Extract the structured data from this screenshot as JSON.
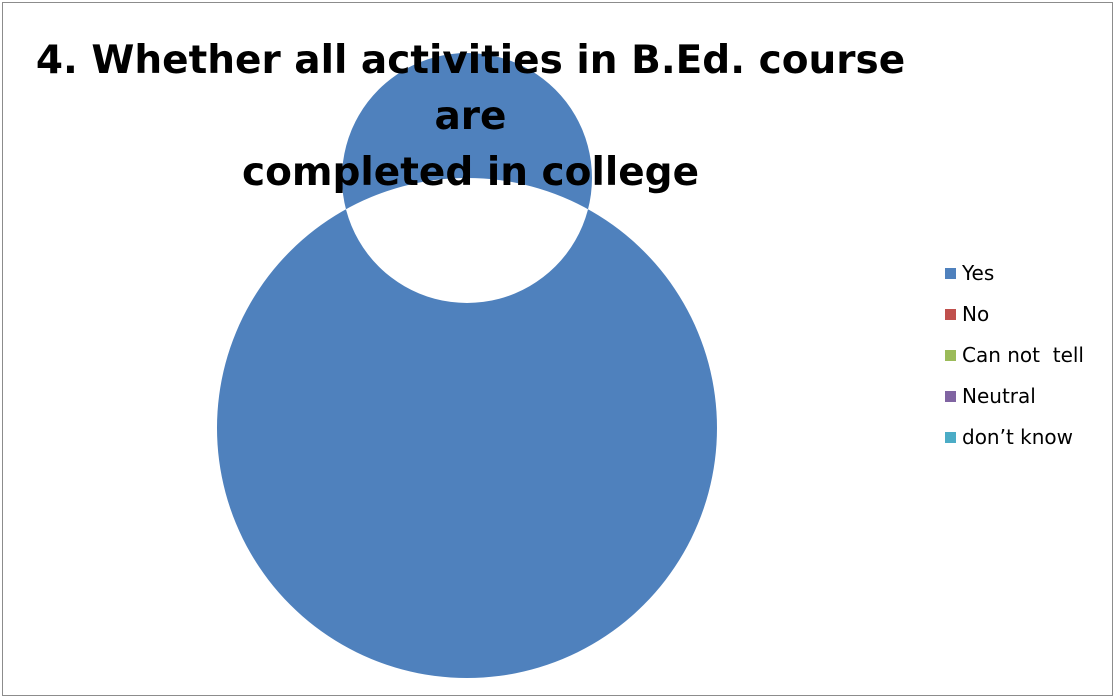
{
  "chart_data": {
    "type": "pie",
    "subtype": "doughnut",
    "title_lines": [
      "4. Whether all activities in B.Ed. course are",
      "completed in college"
    ],
    "categories": [
      "Yes",
      "No",
      "Can not  tell",
      "Neutral",
      "don’t know"
    ],
    "values": [
      100,
      0,
      0,
      0,
      0
    ],
    "colors": [
      "#4f81bd",
      "#c0504d",
      "#9bbb59",
      "#8064a2",
      "#4bacc6"
    ],
    "legend_position": "right"
  }
}
